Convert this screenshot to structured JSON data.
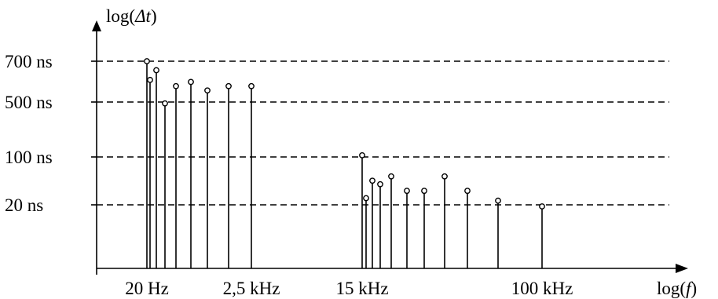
{
  "chart_data": {
    "type": "stem",
    "ylabel_prefix": "log(",
    "ylabel_var": "Δt",
    "ylabel_suffix": ")",
    "xlabel_prefix": "log(",
    "xlabel_var": "f",
    "xlabel_suffix": ")",
    "x_scale": "log",
    "x_ticks": [
      "20 Hz",
      "2,5 kHz",
      "15 kHz",
      "100 kHz"
    ],
    "y_ticks": [
      "700 ns",
      "500 ns",
      "100 ns",
      "20 ns"
    ],
    "grid_lines": "dashed at each y tick",
    "legend": "none",
    "points": [
      {
        "x": "20 Hz",
        "y": 700
      },
      {
        "x": null,
        "y": 600
      },
      {
        "x": null,
        "y": 650
      },
      {
        "x": null,
        "y": 480
      },
      {
        "x": null,
        "y": 570
      },
      {
        "x": null,
        "y": 590
      },
      {
        "x": null,
        "y": 550
      },
      {
        "x": null,
        "y": 570
      },
      {
        "x": "2,5 kHz",
        "y": 570
      },
      {
        "x": "15 kHz",
        "y": 105
      },
      {
        "x": null,
        "y": 25
      },
      {
        "x": null,
        "y": 45
      },
      {
        "x": null,
        "y": 40
      },
      {
        "x": null,
        "y": 52
      },
      {
        "x": null,
        "y": 32
      },
      {
        "x": null,
        "y": 32
      },
      {
        "x": null,
        "y": 52
      },
      {
        "x": null,
        "y": 32
      },
      {
        "x": null,
        "y": 23
      },
      {
        "x": "100 kHz",
        "y": 18
      }
    ]
  }
}
